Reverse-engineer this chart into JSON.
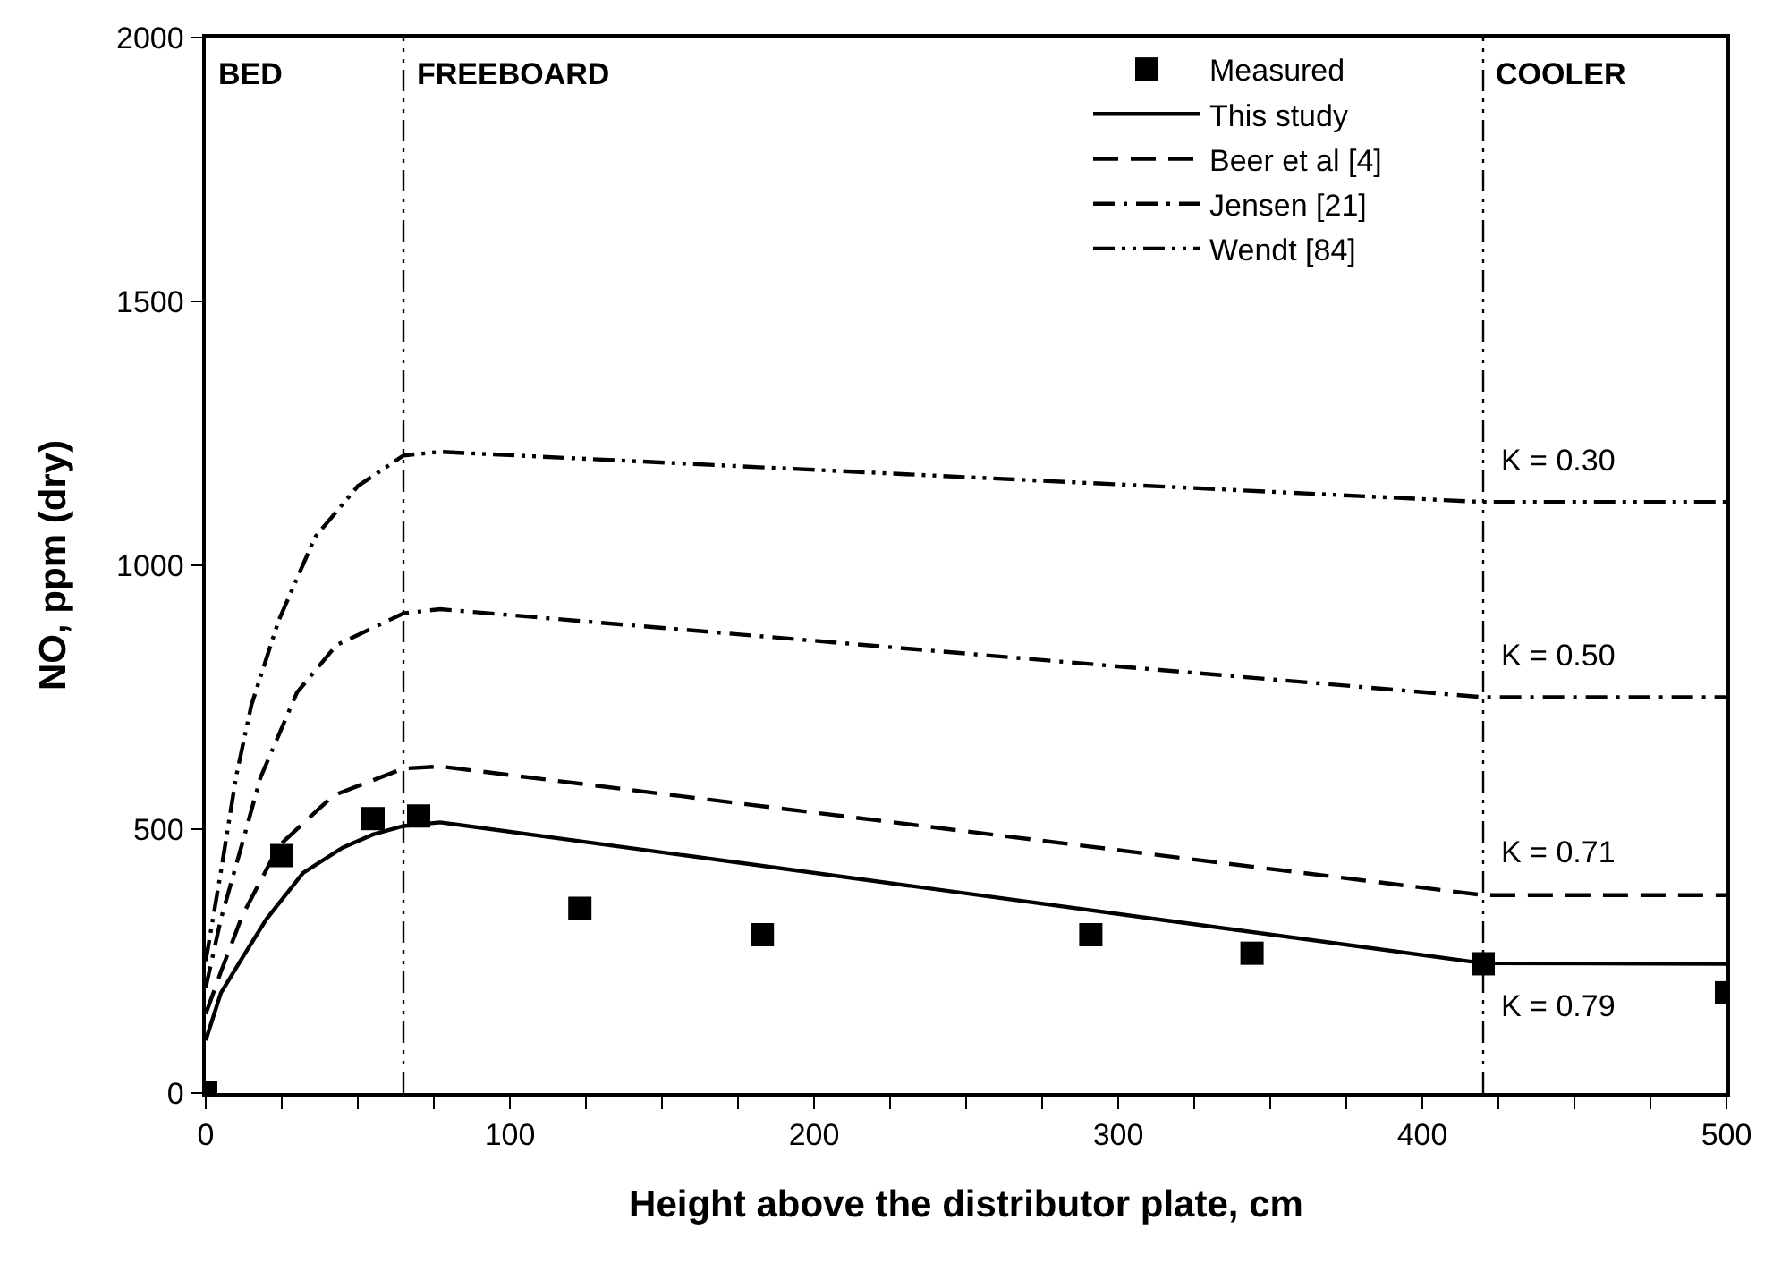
{
  "chart_data": {
    "type": "line",
    "xlabel": "Height above the distributor plate, cm",
    "ylabel": "NO, ppm (dry)",
    "xlim": [
      0,
      500
    ],
    "xticks": [
      0,
      100,
      200,
      300,
      400,
      500
    ],
    "ylim": [
      0,
      2000
    ],
    "yticks": [
      0,
      500,
      1000,
      1500,
      2000
    ],
    "grid": false,
    "legend": "top right",
    "series": [
      {
        "name": "Measured",
        "type": "scatter",
        "marker": "square",
        "color": "#000000",
        "x": [
          0,
          25,
          55,
          70,
          123,
          183,
          291,
          344,
          420,
          500
        ],
        "values": [
          0,
          450,
          520,
          525,
          350,
          300,
          300,
          265,
          245,
          190
        ]
      },
      {
        "name": "This study",
        "line_style": "solid",
        "color": "#000000",
        "x": [
          0,
          5,
          12,
          20,
          32,
          45,
          55,
          65,
          77,
          420,
          500
        ],
        "values": [
          100,
          190,
          256,
          330,
          417,
          465,
          490,
          506,
          513,
          246,
          245
        ]
      },
      {
        "name": "Beer et al [4]",
        "line_style": "dashed",
        "color": "#000000",
        "x": [
          0,
          5,
          12,
          24,
          42,
          65,
          77,
          420,
          500
        ],
        "values": [
          150,
          230,
          336,
          468,
          564,
          615,
          619,
          375,
          375
        ]
      },
      {
        "name": "Jensen [21]",
        "line_style": "dashdot",
        "color": "#000000",
        "x": [
          0,
          5,
          12,
          18,
          30,
          43,
          65,
          77,
          420,
          500
        ],
        "values": [
          200,
          330,
          473,
          598,
          759,
          849,
          909,
          917,
          750,
          750
        ]
      },
      {
        "name": "Wendt [84]",
        "line_style": "dashdotdot",
        "color": "#000000",
        "x": [
          0,
          5,
          10,
          15,
          24,
          36,
          50,
          65,
          77,
          420,
          500
        ],
        "values": [
          250,
          420,
          600,
          735,
          896,
          1054,
          1150,
          1208,
          1215,
          1120,
          1120
        ]
      }
    ],
    "ref_lines": [
      {
        "axis": "x",
        "value": 65,
        "line_style": "dashdotdot",
        "color": "#000000"
      },
      {
        "axis": "x",
        "value": 420,
        "line_style": "dashdotdot",
        "color": "#000000"
      }
    ],
    "annotations": [
      "BED",
      "FREEBOARD",
      "COOLER",
      "K = 0.30",
      "K = 0.50",
      "K = 0.71",
      "K = 0.79"
    ]
  }
}
